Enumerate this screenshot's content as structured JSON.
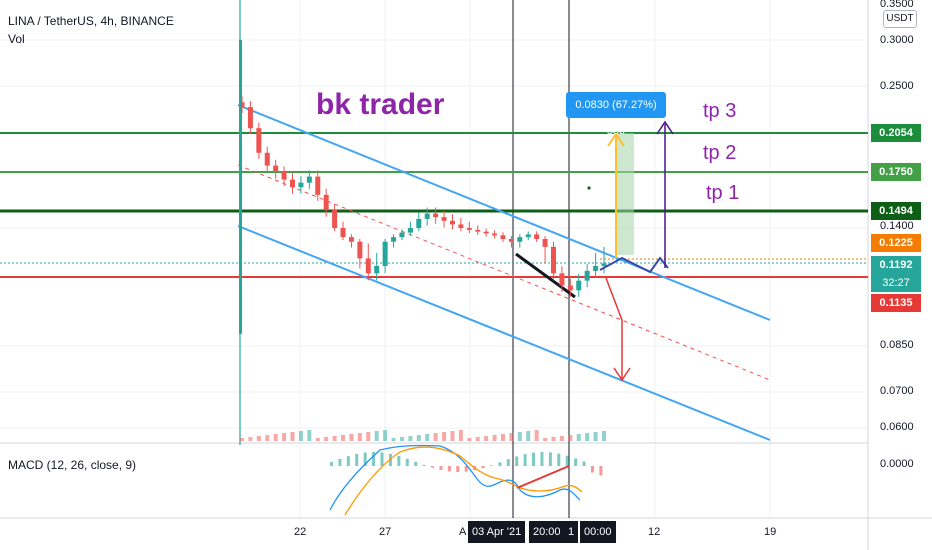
{
  "header": {
    "symbol": "LINA / TetherUS, 4h, BINANCE",
    "vol_label": "Vol",
    "macd_label": "MACD (12, 26, close, 9)"
  },
  "price_axis": {
    "unit_button": "USDT",
    "ticks": [
      "0.3500",
      "0.3000",
      "0.2500",
      "0.1400",
      "0.0850",
      "0.0700",
      "0.0600"
    ],
    "macd_tick": "0.0000"
  },
  "price_tags": [
    {
      "label": "0.2054",
      "color": "#1b8e3b"
    },
    {
      "label": "0.1750",
      "color": "#43a047"
    },
    {
      "label": "0.1494",
      "color": "#0d5e16"
    },
    {
      "label": "0.1225",
      "color": "#f57c00"
    },
    {
      "label": "0.1192",
      "color": "#26a69a"
    },
    {
      "label": "32:27",
      "color": "#26a69a"
    },
    {
      "label": "0.1135",
      "color": "#e53935"
    }
  ],
  "time_axis": {
    "labels": [
      "22",
      "27",
      "A",
      "12",
      "19"
    ],
    "highlighted": [
      "03 Apr '21",
      "20:00",
      "1",
      "00:00"
    ]
  },
  "annotations": {
    "watermark": "bk trader",
    "tp3": "tp 3",
    "tp2": "tp 2",
    "tp1": "tp 1",
    "measure": "0.0830 (67.27%) 830"
  },
  "colors": {
    "up": "#26a69a",
    "down": "#ef5350",
    "channel": "#42a5f5",
    "annotation": "#8e24aa"
  },
  "chart_data": {
    "type": "candlestick",
    "levels": [
      0.2054,
      0.175,
      0.1494,
      0.1225,
      0.1192,
      0.1135
    ],
    "closes": [
      0.23,
      0.21,
      0.19,
      0.18,
      0.175,
      0.17,
      0.165,
      0.168,
      0.172,
      0.16,
      0.15,
      0.14,
      0.13,
      0.125,
      0.12,
      0.115,
      0.118,
      0.125,
      0.13,
      0.135,
      0.14,
      0.145,
      0.148,
      0.146,
      0.144,
      0.142,
      0.14,
      0.138,
      0.136,
      0.134,
      0.132,
      0.128,
      0.125,
      0.13,
      0.133,
      0.128,
      0.122,
      0.115,
      0.11,
      0.108,
      0.112,
      0.116,
      0.118,
      0.119
    ]
  }
}
